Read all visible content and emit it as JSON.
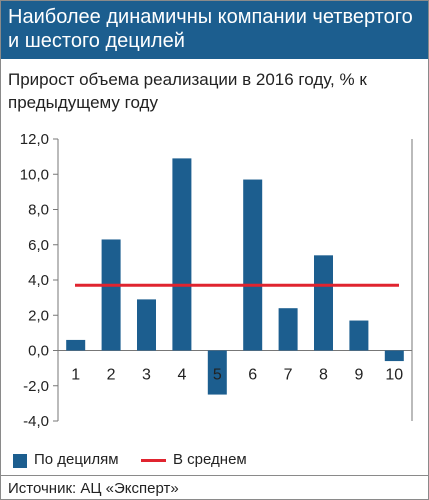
{
  "header": {
    "title": "Наиболее динамичны компании четвертого и шестого децилей"
  },
  "colors": {
    "header_bg": "#1c5e8f",
    "bar": "#1c5e8f",
    "average_line": "#e0242f",
    "grid": "#777777"
  },
  "chart_data": {
    "type": "bar",
    "title": "Прирост объема реализации в 2016 году, % к предыдущему году",
    "categories": [
      "1",
      "2",
      "3",
      "4",
      "5",
      "6",
      "7",
      "8",
      "9",
      "10"
    ],
    "series": [
      {
        "name": "По децилям",
        "values": [
          0.6,
          6.3,
          2.9,
          10.9,
          -2.5,
          9.7,
          2.4,
          5.4,
          1.7,
          -0.6
        ]
      },
      {
        "name": "В среднем",
        "type": "line",
        "value": 3.7
      }
    ],
    "ylim": [
      -4.0,
      12.0
    ],
    "yticks": [
      "12,0",
      "10,0",
      "8,0",
      "6,0",
      "4,0",
      "2,0",
      "0,0",
      "-2,0",
      "-4,0"
    ],
    "ytick_values": [
      12,
      10,
      8,
      6,
      4,
      2,
      0,
      -2,
      -4
    ],
    "grid": false,
    "legend_position": "bottom-left"
  },
  "legend": {
    "bars_label": "По децилям",
    "average_label": "В среднем"
  },
  "source": "Источник: АЦ «Эксперт»"
}
